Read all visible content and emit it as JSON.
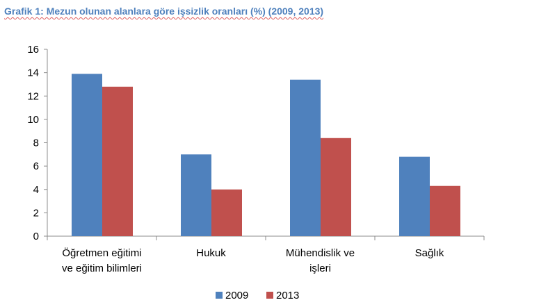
{
  "chart_data": {
    "type": "bar",
    "title": "Grafik 1: Mezun olunan alanlara göre işsizlik  oranları (%) (2009, 2013)",
    "categories": [
      [
        "Öğretmen eğitimi",
        "ve eğitim bilimleri"
      ],
      [
        "Hukuk"
      ],
      [
        "Mühendislik ve",
        "işleri"
      ],
      [
        "Sağlık"
      ]
    ],
    "series": [
      {
        "name": "2009",
        "color": "#4f81bd",
        "values": [
          13.9,
          7.0,
          13.4,
          6.8
        ]
      },
      {
        "name": "2013",
        "color": "#c0504d",
        "values": [
          12.8,
          4.0,
          8.4,
          4.3
        ]
      }
    ],
    "ylim": [
      0,
      16
    ],
    "yticks": [
      0,
      2,
      4,
      6,
      8,
      10,
      12,
      14,
      16
    ],
    "grid": false,
    "legend_position": "bottom-center",
    "xlabel": "",
    "ylabel": ""
  }
}
